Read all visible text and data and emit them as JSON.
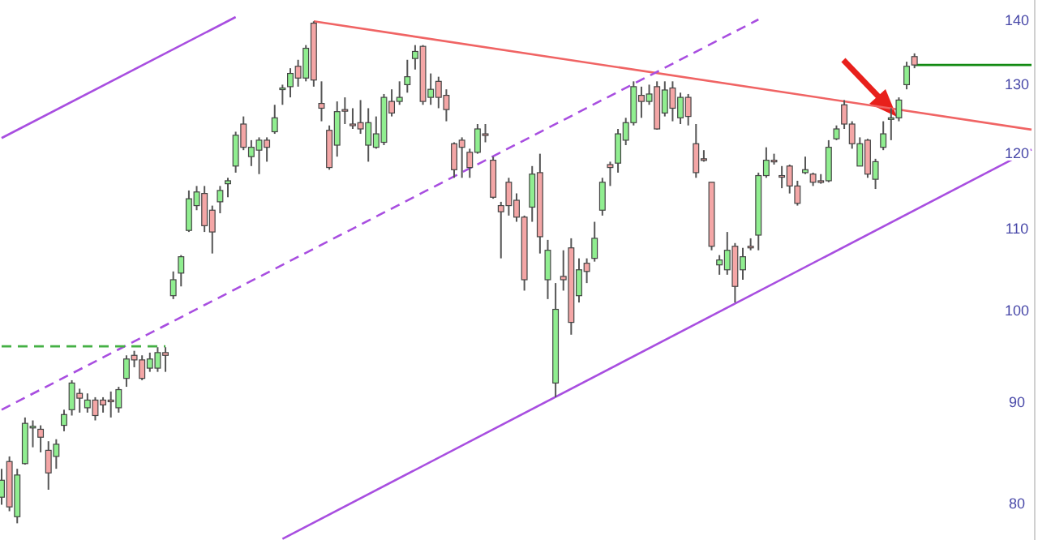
{
  "chart_data": {
    "type": "candlestick",
    "log": "y",
    "tick_labels": "y",
    "ylim": [
      76.7,
      143.4
    ],
    "yticks": [
      80,
      90,
      100,
      110,
      120,
      130,
      140
    ],
    "categories": [
      null,
      null,
      null,
      null,
      null,
      null,
      null,
      null,
      null,
      null,
      null,
      null,
      null,
      null,
      null,
      null,
      null,
      null,
      null,
      null,
      null,
      null,
      null,
      null,
      null,
      null,
      null,
      null,
      null,
      null,
      null,
      null,
      null,
      null,
      null,
      null,
      null,
      null,
      null,
      null,
      null,
      null,
      null,
      null,
      null,
      null,
      null,
      null,
      null,
      null,
      null,
      null,
      null,
      null,
      null,
      null,
      null,
      null,
      null,
      null,
      null,
      null,
      null,
      null,
      null,
      null,
      null,
      null,
      null,
      null,
      null,
      null,
      null,
      null,
      null,
      null,
      null,
      null,
      null,
      null,
      null,
      null,
      null,
      null,
      null,
      null,
      null,
      null,
      null,
      null,
      null,
      null,
      null,
      null,
      null,
      null,
      null,
      null,
      null,
      null,
      null,
      null,
      null,
      null,
      null,
      null,
      null,
      null,
      null,
      null,
      null,
      null,
      null,
      null,
      null,
      null,
      null,
      null,
      null,
      null,
      null,
      null,
      null,
      null,
      null,
      null,
      null,
      null,
      null,
      null,
      null,
      null,
      null
    ],
    "ohlc": [
      [
        80.6,
        83.3,
        79.9,
        82.2
      ],
      [
        84.0,
        84.5,
        79.3,
        79.7
      ],
      [
        78.8,
        83.3,
        78.2,
        82.7
      ],
      [
        83.8,
        88.4,
        83.7,
        87.8
      ],
      [
        87.4,
        88.1,
        85.4,
        87.5
      ],
      [
        87.2,
        87.6,
        84.9,
        86.4
      ],
      [
        85.1,
        86.0,
        81.3,
        82.9
      ],
      [
        84.5,
        86.2,
        83.3,
        85.7
      ],
      [
        87.6,
        89.2,
        87.0,
        88.7
      ],
      [
        89.2,
        92.3,
        88.6,
        92.0
      ],
      [
        90.9,
        91.4,
        88.9,
        90.4
      ],
      [
        89.4,
        90.9,
        88.9,
        90.2
      ],
      [
        90.2,
        90.5,
        88.1,
        88.6
      ],
      [
        90.2,
        90.5,
        88.9,
        89.7
      ],
      [
        90.2,
        91.1,
        88.4,
        90.2
      ],
      [
        89.4,
        91.6,
        88.9,
        91.3
      ],
      [
        92.5,
        95.0,
        91.6,
        94.6
      ],
      [
        95.0,
        95.5,
        93.7,
        94.5
      ],
      [
        94.5,
        95.0,
        92.3,
        92.5
      ],
      [
        93.6,
        95.3,
        93.2,
        94.6
      ],
      [
        93.6,
        95.9,
        93.2,
        95.3
      ],
      [
        95.3,
        95.9,
        93.2,
        95.0
      ],
      [
        101.8,
        104.7,
        101.4,
        103.7
      ],
      [
        104.5,
        106.7,
        102.9,
        106.5
      ],
      [
        109.8,
        115.0,
        109.6,
        113.9
      ],
      [
        113.0,
        115.6,
        112.4,
        114.8
      ],
      [
        114.6,
        115.6,
        109.6,
        110.4
      ],
      [
        112.4,
        113.0,
        106.9,
        109.6
      ],
      [
        113.5,
        115.6,
        112.0,
        115.0
      ],
      [
        115.9,
        116.7,
        114.1,
        116.3
      ],
      [
        118.3,
        123.1,
        117.4,
        122.6
      ],
      [
        124.2,
        125.3,
        120.5,
        120.9
      ],
      [
        119.6,
        121.9,
        118.3,
        120.9
      ],
      [
        120.5,
        122.3,
        117.2,
        121.9
      ],
      [
        121.9,
        122.3,
        118.9,
        120.9
      ],
      [
        123.1,
        127.0,
        122.8,
        125.1
      ],
      [
        129.3,
        130.0,
        127.0,
        129.5
      ],
      [
        129.7,
        132.5,
        128.1,
        131.7
      ],
      [
        132.8,
        133.8,
        129.7,
        131.0
      ],
      [
        131.0,
        136.1,
        130.5,
        135.6
      ],
      [
        139.6,
        139.9,
        129.7,
        130.7
      ],
      [
        127.2,
        130.5,
        124.6,
        126.5
      ],
      [
        123.3,
        124.0,
        117.8,
        118.1
      ],
      [
        121.2,
        127.5,
        119.6,
        126.0
      ],
      [
        126.3,
        128.1,
        124.2,
        126.3
      ],
      [
        124.2,
        126.5,
        123.5,
        124.2
      ],
      [
        124.4,
        127.7,
        122.8,
        123.5
      ],
      [
        121.2,
        126.5,
        118.9,
        124.4
      ],
      [
        120.9,
        125.3,
        120.7,
        122.8
      ],
      [
        121.6,
        128.6,
        121.2,
        128.1
      ],
      [
        127.5,
        129.3,
        125.3,
        125.8
      ],
      [
        127.5,
        130.5,
        127.0,
        128.1
      ],
      [
        130.0,
        133.8,
        128.8,
        131.2
      ],
      [
        134.0,
        136.1,
        132.3,
        135.1
      ],
      [
        135.9,
        136.1,
        127.0,
        127.5
      ],
      [
        128.1,
        131.7,
        127.0,
        129.3
      ],
      [
        130.5,
        131.2,
        126.5,
        128.1
      ],
      [
        128.4,
        129.3,
        124.6,
        126.3
      ],
      [
        121.4,
        121.6,
        116.7,
        117.8
      ],
      [
        121.9,
        122.3,
        116.7,
        120.9
      ],
      [
        120.2,
        120.7,
        116.7,
        118.1
      ],
      [
        120.2,
        124.2,
        120.0,
        123.5
      ],
      [
        122.8,
        124.2,
        121.6,
        122.8
      ],
      [
        119.1,
        119.6,
        113.9,
        114.1
      ],
      [
        113.0,
        113.5,
        106.3,
        112.2
      ],
      [
        116.1,
        116.7,
        111.7,
        113.0
      ],
      [
        113.7,
        114.6,
        110.9,
        111.5
      ],
      [
        111.5,
        111.7,
        102.4,
        103.7
      ],
      [
        112.8,
        118.3,
        110.9,
        117.2
      ],
      [
        117.4,
        120.0,
        106.9,
        109.0
      ],
      [
        103.7,
        108.6,
        101.4,
        107.3
      ],
      [
        92.0,
        103.3,
        90.5,
        100.2
      ],
      [
        104.1,
        107.3,
        102.4,
        103.7
      ],
      [
        107.6,
        108.8,
        97.3,
        98.7
      ],
      [
        101.8,
        106.3,
        101.0,
        104.9
      ],
      [
        105.7,
        106.3,
        103.3,
        104.7
      ],
      [
        106.3,
        110.9,
        105.9,
        108.8
      ],
      [
        112.4,
        116.7,
        111.7,
        116.1
      ],
      [
        118.5,
        118.9,
        115.6,
        118.1
      ],
      [
        118.7,
        123.5,
        117.4,
        122.8
      ],
      [
        121.9,
        125.1,
        121.2,
        124.4
      ],
      [
        124.4,
        130.5,
        124.0,
        129.7
      ],
      [
        128.4,
        129.7,
        125.1,
        127.5
      ],
      [
        127.5,
        130.0,
        127.0,
        128.6
      ],
      [
        129.7,
        130.5,
        123.4,
        123.5
      ],
      [
        125.8,
        130.5,
        125.3,
        129.2
      ],
      [
        129.5,
        130.5,
        124.6,
        126.5
      ],
      [
        125.1,
        128.8,
        124.2,
        128.1
      ],
      [
        128.1,
        128.6,
        124.0,
        125.3
      ],
      [
        121.4,
        124.2,
        116.7,
        117.4
      ],
      [
        119.3,
        120.5,
        118.9,
        119.3
      ],
      [
        116.1,
        116.1,
        107.3,
        107.8
      ],
      [
        105.5,
        106.7,
        104.3,
        106.1
      ],
      [
        104.9,
        109.6,
        104.3,
        107.3
      ],
      [
        107.8,
        108.2,
        101.0,
        102.9
      ],
      [
        104.9,
        107.6,
        103.7,
        106.5
      ],
      [
        107.8,
        108.8,
        107.3,
        107.8
      ],
      [
        109.2,
        117.4,
        107.3,
        117.0
      ],
      [
        117.0,
        120.9,
        116.7,
        119.1
      ],
      [
        119.1,
        120.0,
        118.5,
        119.1
      ],
      [
        117.0,
        118.3,
        115.3,
        117.0
      ],
      [
        118.3,
        118.5,
        114.6,
        115.6
      ],
      [
        115.6,
        116.3,
        113.0,
        113.3
      ],
      [
        117.4,
        119.6,
        117.2,
        117.8
      ],
      [
        117.2,
        117.4,
        115.6,
        116.1
      ],
      [
        116.3,
        117.2,
        115.9,
        116.3
      ],
      [
        116.3,
        121.9,
        116.1,
        120.9
      ],
      [
        122.1,
        124.0,
        121.9,
        123.5
      ],
      [
        127.0,
        127.7,
        123.5,
        124.2
      ],
      [
        124.2,
        124.6,
        120.7,
        121.4
      ],
      [
        118.3,
        122.3,
        118.3,
        121.4
      ],
      [
        121.9,
        122.1,
        116.7,
        117.2
      ],
      [
        116.5,
        119.3,
        115.2,
        118.9
      ],
      [
        120.9,
        124.6,
        120.5,
        122.8
      ],
      [
        125.0,
        126.5,
        121.9,
        125.1
      ],
      [
        125.1,
        128.1,
        124.6,
        127.7
      ],
      [
        130.0,
        133.5,
        129.3,
        132.8
      ],
      [
        134.3,
        134.8,
        132.5,
        133.0
      ],
      null,
      null,
      null,
      null,
      null,
      null,
      null,
      null,
      null,
      null,
      null,
      null,
      null,
      null,
      null
    ],
    "colors": [
      "#90ee90",
      "#f4a6a6",
      "#90ee90",
      "#90ee90",
      "#90ee90",
      "#f4a6a6",
      "#f4a6a6",
      "#90ee90",
      "#90ee90",
      "#90ee90",
      "#f4a6a6",
      "#90ee90",
      "#f4a6a6",
      "#f4a6a6",
      "#f4a6a6",
      "#90ee90",
      "#90ee90",
      "#f4a6a6",
      "#f4a6a6",
      "#90ee90",
      "#90ee90",
      "#f4a6a6",
      "#90ee90",
      "#90ee90",
      "#90ee90",
      "#90ee90",
      "#f4a6a6",
      "#f4a6a6",
      "#90ee90",
      "#90ee90",
      "#90ee90",
      "#f4a6a6",
      "#90ee90",
      "#90ee90",
      "#f4a6a6",
      "#90ee90",
      "#90ee90",
      "#90ee90",
      "#f4a6a6",
      "#90ee90",
      "#f4a6a6",
      "#f4a6a6",
      "#f4a6a6",
      "#90ee90",
      "#f4a6a6",
      "#f4a6a6",
      "#f4a6a6",
      "#90ee90",
      "#90ee90",
      "#90ee90",
      "#f4a6a6",
      "#90ee90",
      "#90ee90",
      "#90ee90",
      "#f4a6a6",
      "#90ee90",
      "#f4a6a6",
      "#f4a6a6",
      "#f4a6a6",
      "#f4a6a6",
      "#f4a6a6",
      "#90ee90",
      "#f4a6a6",
      "#f4a6a6",
      "#f4a6a6",
      "#f4a6a6",
      "#f4a6a6",
      "#f4a6a6",
      "#90ee90",
      "#f4a6a6",
      "#90ee90",
      "#90ee90",
      "#f4a6a6",
      "#f4a6a6",
      "#90ee90",
      "#f4a6a6",
      "#90ee90",
      "#90ee90",
      "#f4a6a6",
      "#90ee90",
      "#90ee90",
      "#90ee90",
      "#f4a6a6",
      "#90ee90",
      "#f4a6a6",
      "#90ee90",
      "#f4a6a6",
      "#90ee90",
      "#f4a6a6",
      "#f4a6a6",
      "#f4a6a6",
      "#f4a6a6",
      "#90ee90",
      "#90ee90",
      "#f4a6a6",
      "#90ee90",
      "#f4a6a6",
      "#90ee90",
      "#90ee90",
      "#f4a6a6",
      "#f4a6a6",
      "#f4a6a6",
      "#f4a6a6",
      "#90ee90",
      "#f4a6a6",
      "#f4a6a6",
      "#90ee90",
      "#90ee90",
      "#f4a6a6",
      "#f4a6a6",
      "#90ee90",
      "#f4a6a6",
      "#90ee90",
      "#90ee90",
      "#90ee90",
      "#90ee90",
      "#90ee90",
      "#f4a6a6",
      null,
      null,
      null,
      null,
      null,
      null,
      null,
      null,
      null,
      null,
      null,
      null,
      null,
      null,
      null
    ],
    "series": [
      {
        "type": "line",
        "color": "#f06464",
        "values": [
          null,
          null,
          null,
          null,
          null,
          null,
          null,
          null,
          null,
          null,
          null,
          null,
          null,
          null,
          null,
          null,
          null,
          null,
          null,
          null,
          null,
          null,
          null,
          null,
          null,
          null,
          null,
          null,
          null,
          null,
          null,
          null,
          null,
          null,
          null,
          null,
          null,
          null,
          null,
          null,
          139.9,
          null,
          null,
          null,
          null,
          null,
          null,
          null,
          null,
          null,
          null,
          null,
          null,
          null,
          null,
          null,
          null,
          null,
          null,
          null,
          null,
          null,
          null,
          null,
          null,
          null,
          null,
          null,
          null,
          null,
          null,
          null,
          null,
          null,
          null,
          null,
          null,
          null,
          null,
          null,
          null,
          null,
          null,
          null,
          null,
          null,
          null,
          null,
          null,
          null,
          null,
          null,
          null,
          null,
          null,
          null,
          null,
          null,
          null,
          null,
          null,
          null,
          null,
          null,
          null,
          null,
          null,
          null,
          null,
          null,
          null,
          null,
          null,
          null,
          null,
          null,
          null,
          null,
          null,
          null,
          null,
          null,
          null,
          null,
          null,
          null,
          null,
          null,
          null,
          null,
          null,
          null,
          123.4
        ]
      },
      {
        "type": "line",
        "color": "#a84ee0",
        "values": [
          null,
          null,
          null,
          null,
          null,
          null,
          null,
          null,
          null,
          null,
          null,
          null,
          null,
          null,
          null,
          null,
          null,
          null,
          null,
          null,
          null,
          null,
          null,
          null,
          null,
          null,
          null,
          null,
          null,
          null,
          null,
          null,
          null,
          null,
          null,
          null,
          76.8,
          null,
          null,
          null,
          null,
          null,
          null,
          null,
          null,
          null,
          null,
          null,
          null,
          null,
          null,
          null,
          null,
          null,
          null,
          null,
          null,
          null,
          null,
          null,
          null,
          null,
          null,
          null,
          null,
          null,
          null,
          null,
          null,
          null,
          null,
          null,
          null,
          null,
          null,
          null,
          null,
          null,
          null,
          null,
          null,
          null,
          null,
          null,
          null,
          null,
          null,
          null,
          null,
          null,
          null,
          null,
          null,
          null,
          null,
          null,
          null,
          null,
          null,
          null,
          null,
          null,
          null,
          null,
          null,
          null,
          null,
          null,
          null,
          null,
          null,
          null,
          null,
          null,
          null,
          null,
          null,
          null,
          null,
          null,
          null,
          null,
          null,
          null,
          null,
          null,
          null,
          null,
          null,
          null,
          null,
          null,
          120.6
        ]
      },
      {
        "type": "line",
        "color": "#a84ee0",
        "line_style": "dashed",
        "values": [
          89.2,
          null,
          null,
          null,
          null,
          null,
          null,
          null,
          null,
          null,
          null,
          null,
          null,
          null,
          null,
          null,
          null,
          null,
          null,
          null,
          null,
          null,
          null,
          null,
          null,
          null,
          null,
          null,
          null,
          null,
          null,
          null,
          null,
          null,
          null,
          null,
          null,
          null,
          null,
          null,
          null,
          null,
          null,
          null,
          null,
          null,
          null,
          null,
          null,
          null,
          null,
          null,
          null,
          null,
          null,
          null,
          null,
          null,
          null,
          null,
          null,
          null,
          null,
          null,
          null,
          null,
          null,
          null,
          null,
          null,
          null,
          null,
          null,
          null,
          null,
          null,
          null,
          null,
          null,
          null,
          null,
          null,
          null,
          null,
          null,
          null,
          null,
          null,
          null,
          null,
          null,
          null,
          null,
          null,
          null,
          null,
          null,
          140.2,
          null,
          null,
          null,
          null,
          null,
          null,
          null,
          null,
          null,
          null,
          null,
          null,
          null,
          null,
          null,
          null,
          null,
          null,
          null,
          null,
          null,
          null,
          null,
          null,
          null,
          null,
          null,
          null,
          null,
          null,
          null,
          null,
          null,
          null,
          null
        ]
      },
      {
        "type": "line",
        "color": "#a84ee0",
        "values": [
          122.2,
          null,
          null,
          null,
          null,
          null,
          null,
          null,
          null,
          null,
          null,
          null,
          null,
          null,
          null,
          null,
          null,
          null,
          null,
          null,
          null,
          null,
          null,
          null,
          null,
          null,
          null,
          null,
          null,
          null,
          140.6,
          null,
          null,
          null,
          null,
          null,
          null,
          null,
          null,
          null,
          null,
          null,
          null,
          null,
          null,
          null,
          null,
          null,
          null,
          null,
          null,
          null,
          null,
          null,
          null,
          null,
          null,
          null,
          null,
          null,
          null,
          null,
          null,
          null,
          null,
          null,
          null,
          null,
          null,
          null,
          null,
          null,
          null,
          null,
          null,
          null,
          null,
          null,
          null,
          null,
          null,
          null,
          null,
          null,
          null,
          null,
          null,
          null,
          null,
          null,
          null,
          null,
          null,
          null,
          null,
          null,
          null,
          null,
          null,
          null,
          null,
          null,
          null,
          null,
          null,
          null,
          null,
          null,
          null,
          null,
          null,
          null,
          null,
          null,
          null,
          null,
          null,
          null,
          null,
          null,
          null,
          null,
          null,
          null,
          null,
          null,
          null,
          null,
          null,
          null,
          null,
          null,
          null
        ]
      },
      {
        "type": "line",
        "color": "#44b044",
        "line_style": "dashed",
        "values": [
          96.0,
          null,
          null,
          null,
          null,
          null,
          null,
          null,
          null,
          null,
          null,
          null,
          null,
          null,
          null,
          null,
          null,
          null,
          null,
          null,
          null,
          96.0,
          null,
          null,
          null,
          null,
          null,
          null,
          null,
          null,
          null,
          null,
          null,
          null,
          null,
          null,
          null,
          null,
          null,
          null,
          null,
          null,
          null,
          null,
          null,
          null,
          null,
          null,
          null,
          null,
          null,
          null,
          null,
          null,
          null,
          null,
          null,
          null,
          null,
          null,
          null,
          null,
          null,
          null,
          null,
          null,
          null,
          null,
          null,
          null,
          null,
          null,
          null,
          null,
          null,
          null,
          null,
          null,
          null,
          null,
          null,
          null,
          null,
          null,
          null,
          null,
          null,
          null,
          null,
          null,
          null,
          null,
          null,
          null,
          null,
          null,
          null,
          null,
          null,
          null,
          null,
          null,
          null,
          null,
          null,
          null,
          null,
          null,
          null,
          null,
          null,
          null,
          null,
          null,
          null,
          null,
          null,
          null,
          null,
          null,
          null,
          null,
          null,
          null,
          null,
          null,
          null,
          null,
          null,
          null,
          null,
          null,
          null
        ]
      },
      {
        "type": "line",
        "color": "#128a12",
        "values": [
          null,
          null,
          null,
          null,
          null,
          null,
          null,
          null,
          null,
          null,
          null,
          null,
          null,
          null,
          null,
          null,
          null,
          null,
          null,
          null,
          null,
          null,
          null,
          null,
          null,
          null,
          null,
          null,
          null,
          null,
          null,
          null,
          null,
          null,
          null,
          null,
          null,
          null,
          null,
          null,
          null,
          null,
          null,
          null,
          null,
          null,
          null,
          null,
          null,
          null,
          null,
          null,
          null,
          null,
          null,
          null,
          null,
          null,
          null,
          null,
          null,
          null,
          null,
          null,
          null,
          null,
          null,
          null,
          null,
          null,
          null,
          null,
          null,
          null,
          null,
          null,
          null,
          null,
          null,
          null,
          null,
          null,
          null,
          null,
          null,
          null,
          null,
          null,
          null,
          null,
          null,
          null,
          null,
          null,
          null,
          null,
          null,
          null,
          null,
          null,
          null,
          null,
          null,
          null,
          null,
          null,
          null,
          null,
          null,
          null,
          null,
          null,
          null,
          null,
          null,
          null,
          null,
          133.0,
          null,
          null,
          null,
          null,
          null,
          null,
          null,
          null,
          null,
          null,
          null,
          null,
          null,
          null,
          133.0
        ]
      }
    ]
  }
}
